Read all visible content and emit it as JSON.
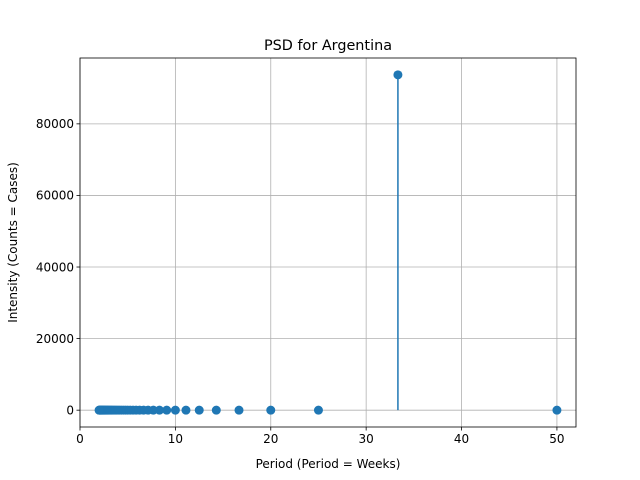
{
  "chart_data": {
    "type": "scatter",
    "title": "PSD for Argentina",
    "xlabel": "Period (Period = Weeks)",
    "ylabel": "Intensity (Counts = Cases)",
    "xlim": [
      0,
      52
    ],
    "ylim": [
      -4700,
      98400
    ],
    "xticks": [
      0,
      10,
      20,
      30,
      40,
      50
    ],
    "yticks": [
      0,
      20000,
      40000,
      60000,
      80000
    ],
    "grid": true,
    "color": "#1f77b4",
    "stem_at": 33.33,
    "x": [
      50,
      33.33,
      25,
      20,
      16.67,
      14.29,
      12.5,
      11.11,
      10,
      9.09,
      8.33,
      7.69,
      7.14,
      6.67,
      6.25,
      5.88,
      5.56,
      5.26,
      5,
      4.76,
      4.55,
      4.35,
      4.17,
      4,
      3.85,
      3.7,
      3.57,
      3.45,
      3.33,
      3.23,
      3.13,
      3.03,
      2.94,
      2.86,
      2.78,
      2.7,
      2.63,
      2.56,
      2.5,
      2.44,
      2.38,
      2.33,
      2.27,
      2.22,
      2.17,
      2.13,
      2.08,
      2.04,
      2
    ],
    "y": [
      0,
      93700,
      0,
      0,
      0,
      0,
      0,
      0,
      0,
      0,
      0,
      0,
      0,
      0,
      0,
      0,
      0,
      0,
      0,
      0,
      0,
      0,
      0,
      0,
      0,
      0,
      0,
      0,
      0,
      0,
      0,
      0,
      0,
      0,
      0,
      0,
      0,
      0,
      0,
      0,
      0,
      0,
      0,
      0,
      0,
      0,
      0,
      0,
      0
    ]
  }
}
